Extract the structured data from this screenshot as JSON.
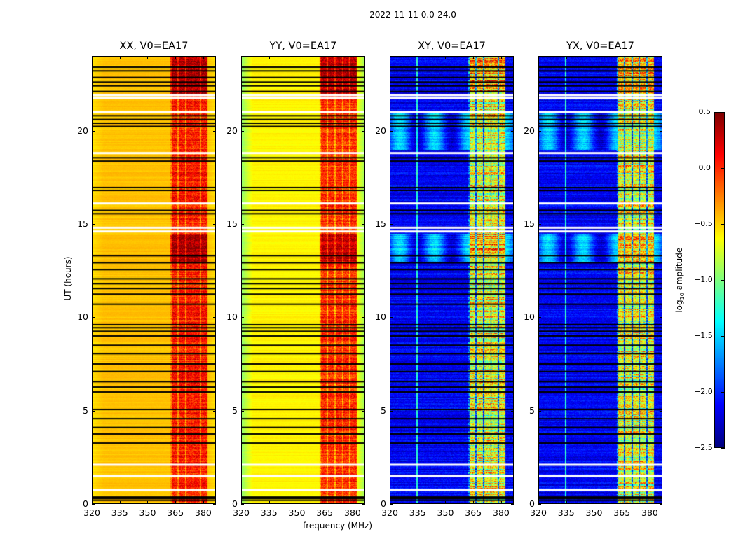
{
  "chart_data": {
    "type": "heatmap",
    "title": "2022-11-11 0.0-24.0",
    "xlabel": "frequency (MHz)",
    "ylabel": "UT (hours)",
    "xlim": [
      320,
      386.8
    ],
    "ylim": [
      0,
      24
    ],
    "xticks": [
      "320",
      "335",
      "350",
      "365",
      "380"
    ],
    "xtick_values": [
      320,
      335,
      350,
      365,
      380
    ],
    "yticks": [
      "0",
      "5",
      "10",
      "15",
      "20"
    ],
    "ytick_values": [
      0,
      5,
      10,
      15,
      20
    ],
    "colormap": "jet",
    "clim": [
      -2.5,
      0.5
    ],
    "colorbar": {
      "label_main": "log",
      "label_sub": "10",
      "label_rest": " amplitude",
      "ticks": [
        "0.5",
        "0.0",
        "−0.5",
        "−1.0",
        "−1.5",
        "−2.0",
        "−2.5"
      ],
      "tick_values": [
        0.5,
        0,
        -0.5,
        -1,
        -1.5,
        -2,
        -2.5
      ]
    },
    "panels": [
      {
        "title": "XX, V0=EA17",
        "base_level": -0.45,
        "band_level": 0.05,
        "edge_drop": 0.1
      },
      {
        "title": "YY, V0=EA17",
        "base_level": -0.6,
        "band_level": 0.0,
        "edge_drop": 0.35
      },
      {
        "title": "XY, V0=EA17",
        "base_level": -2.15,
        "band_level": -0.7,
        "edge_drop": 0.0
      },
      {
        "title": "YX, V0=EA17",
        "base_level": -2.15,
        "band_level": -0.7,
        "edge_drop": 0.0
      }
    ],
    "rfi_band_mhz": [
      362,
      382
    ],
    "flagged_black_ut": [
      0.2,
      0.3,
      0.37,
      3.26,
      3.75,
      4.1,
      4.57,
      5.06,
      6.0,
      6.26,
      6.55,
      7.1,
      7.5,
      8.05,
      8.5,
      9.0,
      9.25,
      9.44,
      9.6,
      10.7,
      11.24,
      11.54,
      11.8,
      12.06,
      12.55,
      12.92,
      13.3,
      15.55,
      15.73,
      16.8,
      16.95,
      18.37,
      18.55,
      20.23,
      20.4,
      20.6,
      20.8,
      22.1,
      22.4,
      22.6,
      22.85,
      23.2,
      23.4
    ],
    "flagged_white_ut": [
      0.75,
      1.5,
      2.1,
      14.6,
      14.8,
      16.1,
      18.8,
      21.0,
      21.75,
      21.9
    ]
  }
}
